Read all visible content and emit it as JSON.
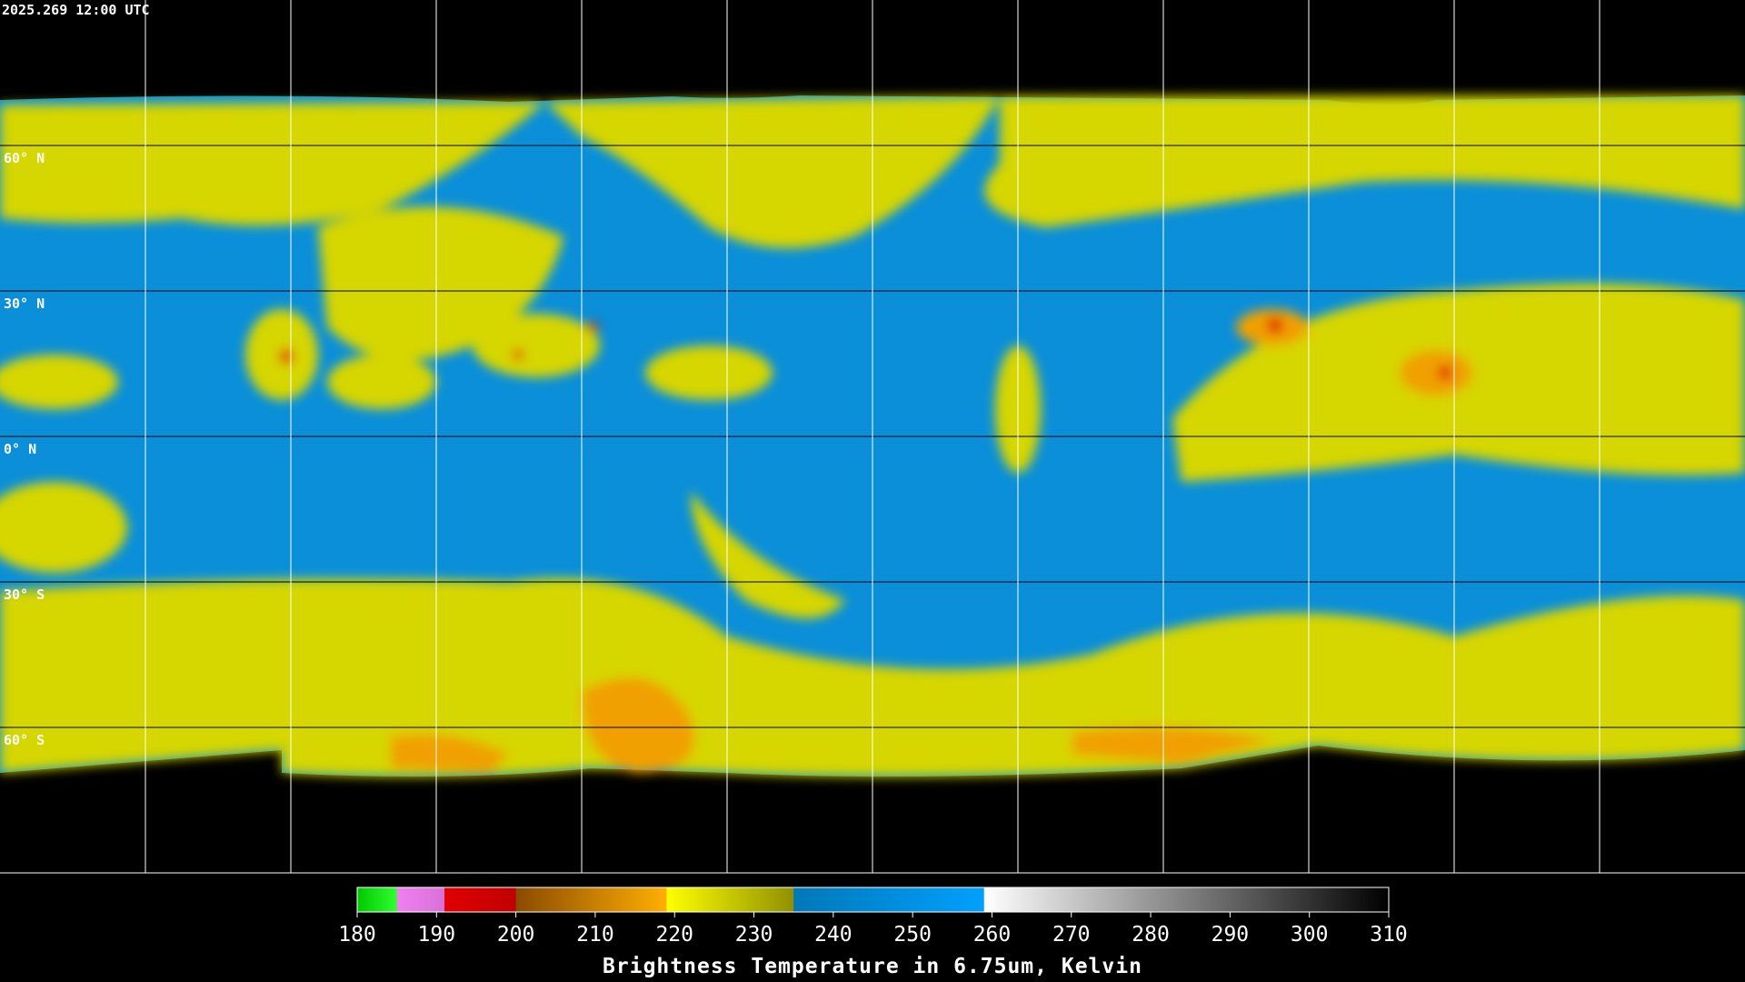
{
  "header": {
    "timestamp": "2025.269 12:00 UTC"
  },
  "map": {
    "latitude_labels": [
      "60° N",
      "30° N",
      "0° N",
      "30° S",
      "60° S"
    ]
  },
  "colorbar": {
    "range": [
      180,
      310
    ],
    "ticks": [
      180,
      190,
      200,
      210,
      220,
      230,
      240,
      250,
      260,
      270,
      280,
      290,
      300,
      310
    ],
    "segments": [
      {
        "from": 180,
        "to": 185,
        "colors": [
          "#00c800",
          "#30ff30"
        ]
      },
      {
        "from": 185,
        "to": 191,
        "colors": [
          "#f080f0",
          "#d870d8"
        ]
      },
      {
        "from": 191,
        "to": 200,
        "colors": [
          "#e00000",
          "#c00000"
        ]
      },
      {
        "from": 200,
        "to": 219,
        "colors": [
          "#8a4a00",
          "#ffb000"
        ]
      },
      {
        "from": 219,
        "to": 235,
        "colors": [
          "#ffff00",
          "#909000"
        ]
      },
      {
        "from": 235,
        "to": 259,
        "colors": [
          "#0078b8",
          "#00a0ff"
        ]
      },
      {
        "from": 259,
        "to": 310,
        "colors": [
          "#ffffff",
          "#000000"
        ]
      }
    ],
    "label": "Brightness Temperature in 6.75um, Kelvin"
  }
}
